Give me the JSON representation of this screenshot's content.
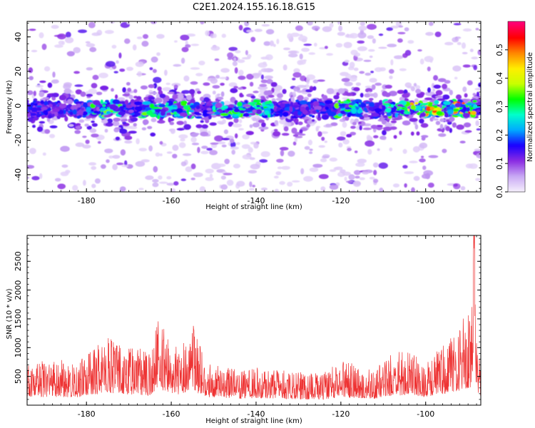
{
  "title": "C2E1.2024.155.16.18.G15",
  "chart_data": [
    {
      "type": "heatmap",
      "xlabel": "Height of straight line (km)",
      "ylabel": "Frequency (Hz)",
      "xlim": [
        -194,
        -87
      ],
      "ylim": [
        -50,
        49
      ],
      "xticks": [
        -180,
        -160,
        -140,
        -120,
        -100
      ],
      "yticks": [
        -40,
        -20,
        0,
        20,
        40
      ],
      "colorbar": {
        "label": "Normalized spectral amplitude",
        "range": [
          0.0,
          0.6
        ],
        "ticks": [
          0.0,
          0.1,
          0.2,
          0.3,
          0.4,
          0.5
        ],
        "colormap": [
          "#f5eefc",
          "#c8a8f4",
          "#8a2be2",
          "#1a00ff",
          "#00aaff",
          "#00ffcc",
          "#00ff00",
          "#c8ff00",
          "#ffee00",
          "#ff8800",
          "#ff0000",
          "#ff0077"
        ]
      },
      "band": {
        "center_hz": -2,
        "half_width_hz": 5,
        "peak_regions_km": [
          [
            -180,
            -172
          ],
          [
            -167,
            -155
          ],
          [
            -150,
            -136
          ],
          [
            -121,
            -115
          ],
          [
            -110,
            -88
          ]
        ],
        "max_amplitude_near_km": -101
      }
    },
    {
      "type": "line",
      "xlabel": "Height of straight line (km)",
      "ylabel": "SNR (10 * v/v)",
      "xlim": [
        -194,
        -87
      ],
      "ylim": [
        0,
        2950
      ],
      "xticks": [
        -180,
        -160,
        -140,
        -120,
        -100
      ],
      "yticks": [
        500,
        1000,
        1500,
        2000,
        2500
      ],
      "color": "#ee3333",
      "envelope": {
        "x": [
          -194,
          -190,
          -186,
          -182,
          -178,
          -175,
          -172,
          -168,
          -165,
          -163,
          -161,
          -158,
          -155,
          -152,
          -148,
          -144,
          -140,
          -136,
          -132,
          -128,
          -124,
          -120,
          -116,
          -112,
          -108,
          -104,
          -100,
          -96,
          -93,
          -91,
          -89.5,
          -88.5,
          -87.5
        ],
        "y": [
          800,
          780,
          790,
          760,
          1060,
          1200,
          1040,
          1030,
          900,
          1550,
          1300,
          960,
          1470,
          760,
          700,
          620,
          680,
          640,
          600,
          560,
          560,
          800,
          690,
          620,
          900,
          1000,
          780,
          1050,
          1300,
          1550,
          1700,
          2950,
          900
        ]
      }
    }
  ]
}
